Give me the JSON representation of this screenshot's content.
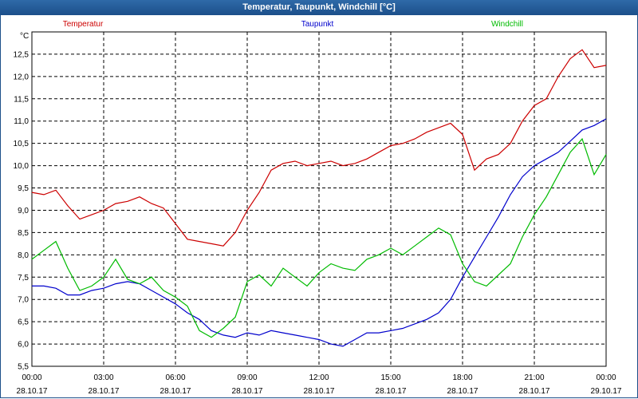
{
  "window": {
    "title": "Temperatur, Taupunkt, Windchill [°C]"
  },
  "chart_data": {
    "type": "line",
    "ylabel": "°C",
    "ylim": [
      5.5,
      13.0
    ],
    "y_ticks": [
      "5,5",
      "6,0",
      "6,5",
      "7,0",
      "7,5",
      "8,0",
      "8,5",
      "9,0",
      "9,5",
      "10,0",
      "10,5",
      "11,0",
      "11,5",
      "12,0",
      "12,5"
    ],
    "y_tick_values": [
      5.5,
      6.0,
      6.5,
      7.0,
      7.5,
      8.0,
      8.5,
      9.0,
      9.5,
      10.0,
      10.5,
      11.0,
      11.5,
      12.0,
      12.5
    ],
    "xlim": [
      0,
      24
    ],
    "x_ticks": [
      {
        "time": "00:00",
        "date": "28.10.17"
      },
      {
        "time": "03:00",
        "date": "28.10.17"
      },
      {
        "time": "06:00",
        "date": "28.10.17"
      },
      {
        "time": "09:00",
        "date": "28.10.17"
      },
      {
        "time": "12:00",
        "date": "28.10.17"
      },
      {
        "time": "15:00",
        "date": "28.10.17"
      },
      {
        "time": "18:00",
        "date": "28.10.17"
      },
      {
        "time": "21:00",
        "date": "28.10.17"
      },
      {
        "time": "00:00",
        "date": "29.10.17"
      }
    ],
    "x_tick_values": [
      0,
      3,
      6,
      9,
      12,
      15,
      18,
      21,
      24
    ],
    "grid": true,
    "series": [
      {
        "name": "Temperatur",
        "color": "#cc0000",
        "x": [
          0,
          0.5,
          1,
          1.5,
          2,
          2.5,
          3,
          3.5,
          4,
          4.5,
          5,
          5.5,
          6,
          6.5,
          7,
          7.5,
          8,
          8.5,
          9,
          9.5,
          10,
          10.5,
          11,
          11.5,
          12,
          12.5,
          13,
          13.5,
          14,
          14.5,
          15,
          15.5,
          16,
          16.5,
          17,
          17.5,
          18,
          18.5,
          19,
          19.5,
          20,
          20.5,
          21,
          21.5,
          22,
          22.5,
          23,
          23.5,
          24
        ],
        "values": [
          9.4,
          9.35,
          9.45,
          9.1,
          8.8,
          8.9,
          9.0,
          9.15,
          9.2,
          9.3,
          9.15,
          9.05,
          8.7,
          8.35,
          8.3,
          8.25,
          8.2,
          8.5,
          9.0,
          9.4,
          9.9,
          10.05,
          10.1,
          10.0,
          10.05,
          10.1,
          10.0,
          10.05,
          10.15,
          10.3,
          10.45,
          10.5,
          10.6,
          10.75,
          10.85,
          10.95,
          10.7,
          9.9,
          10.15,
          10.25,
          10.5,
          11.0,
          11.35,
          11.5,
          12.0,
          12.4,
          12.6,
          12.2,
          12.25
        ]
      },
      {
        "name": "Taupunkt",
        "color": "#0000cc",
        "x": [
          0,
          0.5,
          1,
          1.5,
          2,
          2.5,
          3,
          3.5,
          4,
          4.5,
          5,
          5.5,
          6,
          6.5,
          7,
          7.5,
          8,
          8.5,
          9,
          9.5,
          10,
          10.5,
          11,
          11.5,
          12,
          12.5,
          13,
          13.5,
          14,
          14.5,
          15,
          15.5,
          16,
          16.5,
          17,
          17.5,
          18,
          18.5,
          19,
          19.5,
          20,
          20.5,
          21,
          21.5,
          22,
          22.5,
          23,
          23.5,
          24
        ],
        "values": [
          7.3,
          7.3,
          7.25,
          7.1,
          7.1,
          7.2,
          7.25,
          7.35,
          7.4,
          7.35,
          7.2,
          7.05,
          6.9,
          6.7,
          6.55,
          6.3,
          6.2,
          6.15,
          6.25,
          6.2,
          6.3,
          6.25,
          6.2,
          6.15,
          6.1,
          6.0,
          5.95,
          6.1,
          6.25,
          6.25,
          6.3,
          6.35,
          6.45,
          6.55,
          6.7,
          7.0,
          7.5,
          7.95,
          8.4,
          8.85,
          9.35,
          9.75,
          10.0,
          10.15,
          10.3,
          10.55,
          10.8,
          10.9,
          11.05
        ]
      },
      {
        "name": "Windchill",
        "color": "#00bb00",
        "x": [
          0,
          0.5,
          1,
          1.5,
          2,
          2.5,
          3,
          3.5,
          4,
          4.5,
          5,
          5.5,
          6,
          6.5,
          7,
          7.5,
          8,
          8.5,
          9,
          9.5,
          10,
          10.5,
          11,
          11.5,
          12,
          12.5,
          13,
          13.5,
          14,
          14.5,
          15,
          15.5,
          16,
          16.5,
          17,
          17.5,
          18,
          18.5,
          19,
          19.5,
          20,
          20.5,
          21,
          21.5,
          22,
          22.5,
          23,
          23.5,
          24
        ],
        "values": [
          7.9,
          8.1,
          8.3,
          7.7,
          7.2,
          7.3,
          7.5,
          7.9,
          7.45,
          7.35,
          7.5,
          7.2,
          7.05,
          6.85,
          6.3,
          6.15,
          6.35,
          6.6,
          7.4,
          7.55,
          7.3,
          7.7,
          7.5,
          7.3,
          7.6,
          7.8,
          7.7,
          7.65,
          7.9,
          8.0,
          8.15,
          8.0,
          8.2,
          8.4,
          8.6,
          8.45,
          7.8,
          7.4,
          7.3,
          7.55,
          7.8,
          8.4,
          8.9,
          9.3,
          9.8,
          10.3,
          10.6,
          9.8,
          10.25
        ]
      }
    ]
  }
}
